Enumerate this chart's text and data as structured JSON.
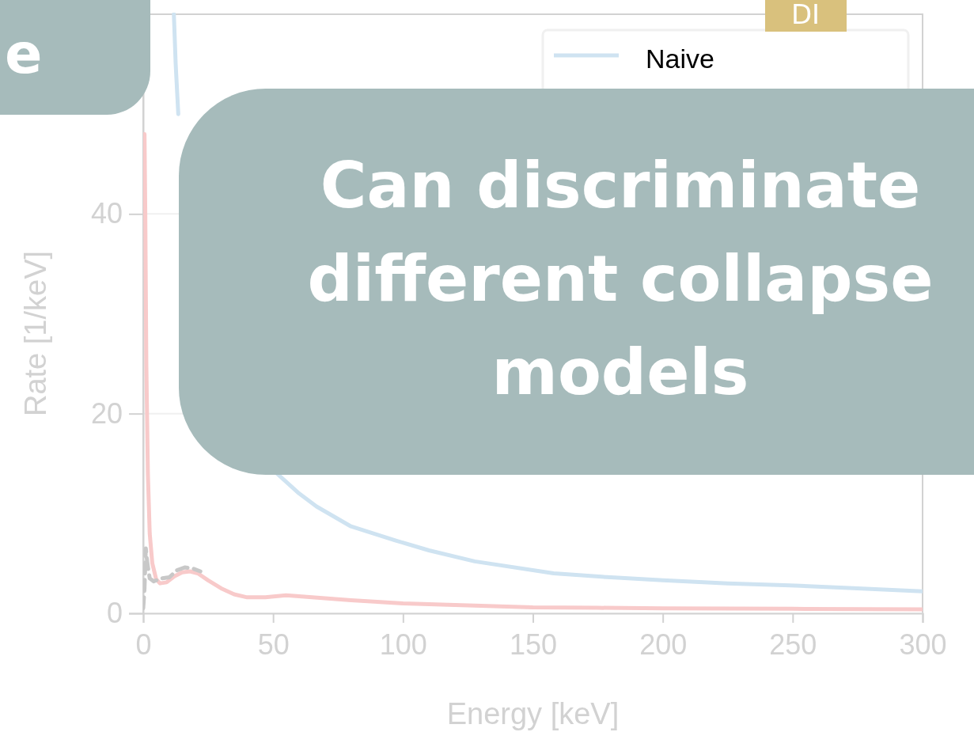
{
  "chart_data": {
    "type": "line",
    "xlabel": "Energy [keV]",
    "ylabel": "Rate [1/keV]",
    "xlim": [
      0,
      300
    ],
    "ylim": [
      0,
      60
    ],
    "xticks": [
      0,
      50,
      100,
      150,
      200,
      250,
      300
    ],
    "yticks": [
      0,
      20,
      40
    ],
    "grid": "y",
    "legend": "top right",
    "series": [
      {
        "name": "Naive",
        "color": "#cfe3f1",
        "x": [
          11.8,
          12.5,
          13.5,
          14.3,
          20,
          51.5,
          60,
          66.7,
          80,
          97,
          110,
          127.6,
          158,
          180,
          200,
          225,
          249,
          275,
          300
        ],
        "values": [
          60,
          55,
          50,
          null,
          null,
          14,
          12,
          10.7,
          8.7,
          7.3,
          6.3,
          5.2,
          4.0,
          3.6,
          3.3,
          3.0,
          2.8,
          2.5,
          2.2
        ]
      },
      {
        "color": "#f8caca",
        "x": [
          0.5,
          0.8,
          1.2,
          1.8,
          2.5,
          3.5,
          5,
          6.5,
          9,
          12,
          15,
          18,
          21,
          25,
          30,
          35,
          40,
          47,
          55,
          65,
          80,
          100,
          125,
          150,
          175,
          200,
          250,
          300
        ],
        "values": [
          48,
          40,
          25,
          14,
          8,
          5,
          3.4,
          3,
          3.1,
          3.7,
          4.1,
          4.2,
          4.0,
          3.3,
          2.5,
          1.9,
          1.6,
          1.6,
          1.8,
          1.6,
          1.3,
          1.0,
          0.8,
          0.6,
          0.55,
          0.5,
          0.45,
          0.4
        ]
      },
      {
        "color": "#c8c8c8",
        "line_style": "dashed",
        "x": [
          0,
          0.5,
          1,
          1.6,
          2.5,
          4,
          7,
          10,
          13,
          16,
          19,
          22
        ],
        "values": [
          0.5,
          2.5,
          6.5,
          5,
          3.5,
          3.2,
          3.5,
          3.6,
          4.3,
          4.6,
          4.5,
          4.2
        ]
      }
    ],
    "annotations": [
      "Can discriminate different collapse models",
      "e",
      "DI"
    ]
  }
}
